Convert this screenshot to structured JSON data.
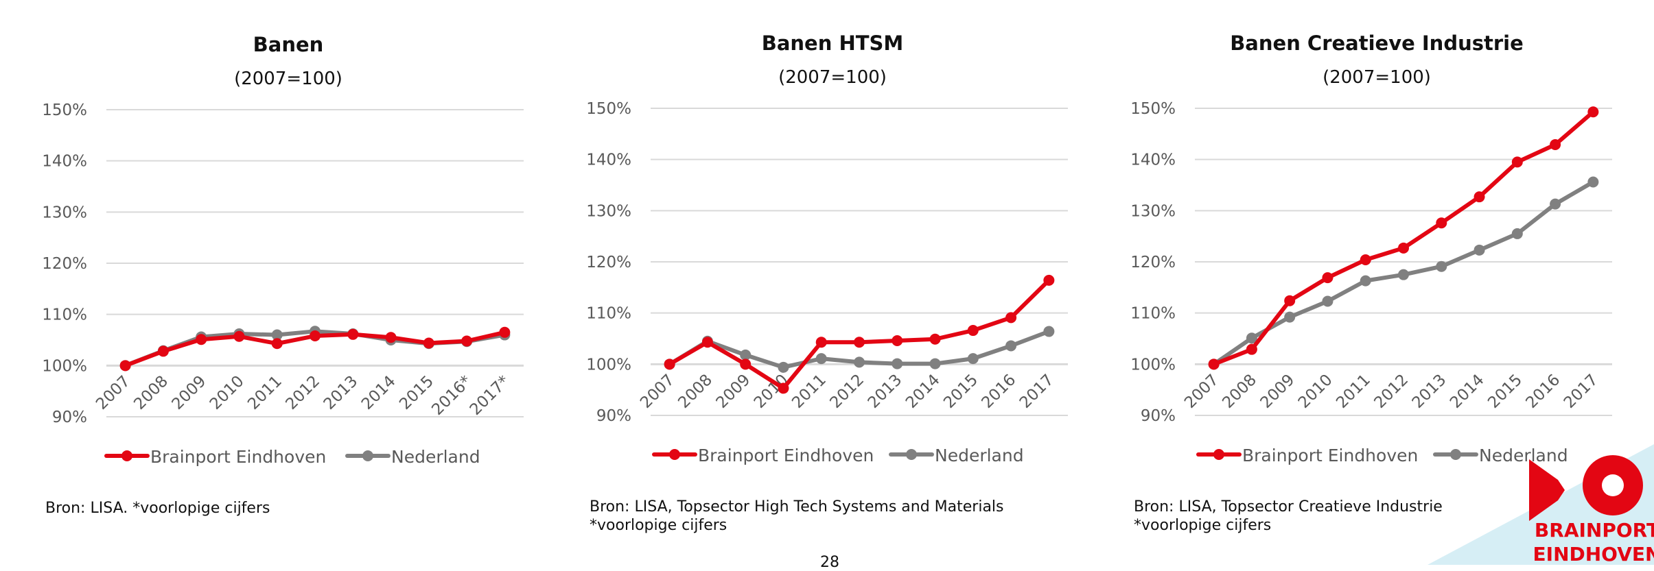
{
  "page_number": "28",
  "legend": {
    "brainport": "Brainport Eindhoven",
    "nederland": "Nederland"
  },
  "colors": {
    "brainport": "#e30613",
    "nederland": "#808080",
    "grid": "#d9d9d9",
    "axis_text": "#595959",
    "logo_red": "#e30613",
    "logo_bg": "#d6eef5"
  },
  "logo": {
    "line1": "BRAINPORT",
    "line2": "EINDHOVEN"
  },
  "chart_data": [
    {
      "type": "line",
      "title": "Banen",
      "subtitle": "(2007=100)",
      "categories": [
        "2007",
        "2008",
        "2009",
        "2010",
        "2011",
        "2012",
        "2013",
        "2014",
        "2015",
        "2016*",
        "2017*"
      ],
      "yticks": [
        "150%",
        "140%",
        "130%",
        "120%",
        "110%",
        "100%",
        "90%"
      ],
      "ylim": [
        90,
        150
      ],
      "series": [
        {
          "name": "Brainport Eindhoven",
          "values": [
            100,
            102.8,
            105.1,
            105.7,
            104.3,
            105.8,
            106.1,
            105.5,
            104.4,
            104.8,
            106.5
          ]
        },
        {
          "name": "Nederland",
          "values": [
            100,
            102.9,
            105.6,
            106.2,
            106.0,
            106.7,
            106.2,
            105.0,
            104.3,
            104.7,
            106.0
          ]
        }
      ],
      "source": [
        "Bron: LISA. *voorlopige cijfers"
      ]
    },
    {
      "type": "line",
      "title": "Banen HTSM",
      "subtitle": "(2007=100)",
      "categories": [
        "2007",
        "2008",
        "2009",
        "2010",
        "2011",
        "2012",
        "2013",
        "2014",
        "2015",
        "2016",
        "2017"
      ],
      "yticks": [
        "150%",
        "140%",
        "130%",
        "120%",
        "110%",
        "100%",
        "90%"
      ],
      "ylim": [
        90,
        150
      ],
      "series": [
        {
          "name": "Brainport Eindhoven",
          "values": [
            100,
            104.3,
            100.0,
            95.3,
            104.3,
            104.3,
            104.6,
            104.9,
            106.6,
            109.1,
            116.4
          ]
        },
        {
          "name": "Nederland",
          "values": [
            100,
            104.5,
            101.8,
            99.4,
            101.1,
            100.4,
            100.1,
            100.1,
            101.1,
            103.6,
            106.4
          ]
        }
      ],
      "source": [
        "Bron: LISA, Topsector High Tech Systems and Materials",
        "*voorlopige cijfers"
      ]
    },
    {
      "type": "line",
      "title": "Banen Creatieve Industrie",
      "subtitle": "(2007=100)",
      "categories": [
        "2007",
        "2008",
        "2009",
        "2010",
        "2011",
        "2012",
        "2013",
        "2014",
        "2015",
        "2016",
        "2017"
      ],
      "yticks": [
        "150%",
        "140%",
        "130%",
        "120%",
        "110%",
        "100%",
        "90%"
      ],
      "ylim": [
        90,
        150
      ],
      "series": [
        {
          "name": "Brainport Eindhoven",
          "values": [
            100,
            102.9,
            112.4,
            116.9,
            120.4,
            122.7,
            127.6,
            132.7,
            139.5,
            142.9,
            149.3
          ]
        },
        {
          "name": "Nederland",
          "values": [
            100,
            105.1,
            109.2,
            112.3,
            116.3,
            117.5,
            119.1,
            122.3,
            125.5,
            131.3,
            135.6
          ]
        }
      ],
      "source": [
        "Bron: LISA, Topsector Creatieve Industrie",
        "*voorlopige cijfers"
      ]
    }
  ]
}
